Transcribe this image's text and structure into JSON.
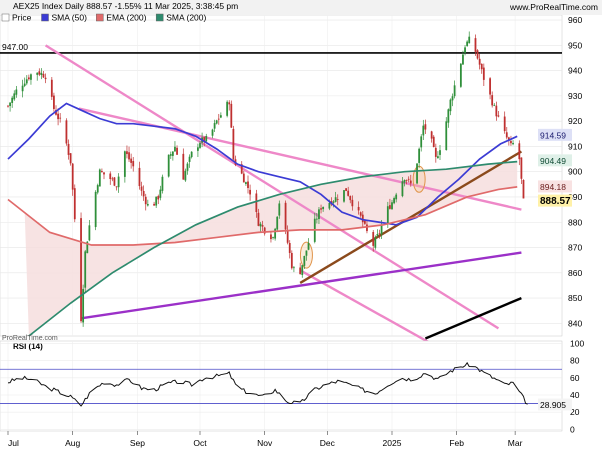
{
  "header": {
    "title": "AEX25 Index Daily 888.57 -1.55% 11 Mar 2025, 3:38:45 pm",
    "brand": "www.ProRealTime.com",
    "watermark": "ProRealTime.com"
  },
  "legend": [
    {
      "label": "Price",
      "color": "#ffffff"
    },
    {
      "label": "SMA (50)",
      "color": "#3b3bd4"
    },
    {
      "label": "EMA (200)",
      "color": "#e06a6a"
    },
    {
      "label": "SMA (200)",
      "color": "#2e8b6e"
    }
  ],
  "rsi_panel": {
    "title": "RSI (14)"
  },
  "chart_data": [
    {
      "type": "candlestick",
      "ylim": [
        835,
        962
      ],
      "y_ticks": [
        840,
        850,
        860,
        870,
        880,
        890,
        900,
        910,
        920,
        930,
        940,
        950,
        960
      ],
      "x_ticks": [
        "Jul",
        "Aug",
        "Sep",
        "Oct",
        "Nov",
        "Dec",
        "2025",
        "Feb",
        "Mar"
      ],
      "x_tick_days": [
        0,
        31,
        62,
        92,
        123,
        153,
        184,
        215,
        243
      ],
      "last_day": 253,
      "price_path": [
        [
          0,
          926
        ],
        [
          4,
          932
        ],
        [
          8,
          936
        ],
        [
          13,
          940
        ],
        [
          18,
          938
        ],
        [
          22,
          925
        ],
        [
          26,
          918
        ],
        [
          30,
          904
        ],
        [
          33,
          870
        ],
        [
          35,
          842
        ],
        [
          37,
          868
        ],
        [
          40,
          884
        ],
        [
          44,
          900
        ],
        [
          48,
          898
        ],
        [
          52,
          895
        ],
        [
          56,
          908
        ],
        [
          60,
          902
        ],
        [
          64,
          892
        ],
        [
          68,
          885
        ],
        [
          72,
          890
        ],
        [
          76,
          904
        ],
        [
          80,
          910
        ],
        [
          84,
          898
        ],
        [
          88,
          907
        ],
        [
          92,
          912
        ],
        [
          96,
          913
        ],
        [
          100,
          920
        ],
        [
          104,
          925
        ],
        [
          106,
          928
        ],
        [
          108,
          905
        ],
        [
          112,
          899
        ],
        [
          116,
          892
        ],
        [
          120,
          880
        ],
        [
          124,
          876
        ],
        [
          127,
          874
        ],
        [
          130,
          888
        ],
        [
          134,
          872
        ],
        [
          136,
          863
        ],
        [
          139,
          858
        ],
        [
          142,
          866
        ],
        [
          146,
          878
        ],
        [
          150,
          886
        ],
        [
          154,
          888
        ],
        [
          158,
          890
        ],
        [
          162,
          893
        ],
        [
          166,
          886
        ],
        [
          169,
          882
        ],
        [
          172,
          876
        ],
        [
          175,
          871
        ],
        [
          178,
          876
        ],
        [
          181,
          884
        ],
        [
          184,
          888
        ],
        [
          187,
          894
        ],
        [
          190,
          898
        ],
        [
          193,
          895
        ],
        [
          196,
          904
        ],
        [
          199,
          918
        ],
        [
          202,
          915
        ],
        [
          205,
          905
        ],
        [
          208,
          912
        ],
        [
          212,
          928
        ],
        [
          216,
          940
        ],
        [
          219,
          950
        ],
        [
          222,
          953
        ],
        [
          225,
          945
        ],
        [
          228,
          937
        ],
        [
          231,
          930
        ],
        [
          234,
          923
        ],
        [
          238,
          915
        ],
        [
          241,
          910
        ],
        [
          243,
          912
        ],
        [
          245,
          905
        ],
        [
          247,
          888
        ]
      ],
      "series": [
        {
          "name": "SMA (50)",
          "color": "#3b3bd4",
          "values": [
            [
              0,
              905
            ],
            [
              10,
              913
            ],
            [
              20,
              922
            ],
            [
              28,
              927
            ],
            [
              36,
              924
            ],
            [
              44,
              921
            ],
            [
              52,
              919
            ],
            [
              60,
              919
            ],
            [
              70,
              918
            ],
            [
              80,
              917
            ],
            [
              90,
              914
            ],
            [
              100,
              909
            ],
            [
              110,
              903
            ],
            [
              120,
              900
            ],
            [
              130,
              898
            ],
            [
              140,
              896
            ],
            [
              150,
              891
            ],
            [
              160,
              884
            ],
            [
              170,
              881
            ],
            [
              178,
              880
            ],
            [
              186,
              879
            ],
            [
              196,
              882
            ],
            [
              206,
              890
            ],
            [
              216,
              897
            ],
            [
              226,
              905
            ],
            [
              236,
              911
            ],
            [
              244,
              914
            ]
          ],
          "last": 914.59
        },
        {
          "name": "EMA (200)",
          "color": "#e06a6a",
          "values": [
            [
              0,
              889
            ],
            [
              20,
              876
            ],
            [
              40,
              871
            ],
            [
              60,
              871
            ],
            [
              80,
              872
            ],
            [
              100,
              874
            ],
            [
              120,
              876
            ],
            [
              140,
              877
            ],
            [
              160,
              877
            ],
            [
              180,
              879
            ],
            [
              200,
              883
            ],
            [
              220,
              890
            ],
            [
              235,
              893
            ],
            [
              244,
              894
            ]
          ],
          "last": 894.18
        },
        {
          "name": "SMA (200)",
          "color": "#2e8b6e",
          "values": [
            [
              10,
              835
            ],
            [
              30,
              848
            ],
            [
              50,
              860
            ],
            [
              70,
              870
            ],
            [
              90,
              879
            ],
            [
              110,
              886
            ],
            [
              130,
              891
            ],
            [
              150,
              895
            ],
            [
              170,
              898
            ],
            [
              190,
              900
            ],
            [
              210,
              901
            ],
            [
              230,
              903
            ],
            [
              244,
              904
            ]
          ],
          "last": 904.49
        }
      ],
      "hline": {
        "label": "947.00",
        "value": 947
      },
      "trendlines": [
        {
          "color": "#ee88c8",
          "from": [
            18,
            950
          ],
          "to": [
            235,
            838
          ]
        },
        {
          "color": "#ee88c8",
          "from": [
            34,
            925
          ],
          "to": [
            246,
            885
          ]
        },
        {
          "color": "#ee88c8",
          "from": [
            140,
            861
          ],
          "to": [
            246,
            812
          ]
        },
        {
          "color": "#8b4a1c",
          "from": [
            140,
            856
          ],
          "to": [
            246,
            908
          ]
        },
        {
          "color": "#9b30c8",
          "from": [
            35,
            842
          ],
          "to": [
            246,
            868
          ]
        },
        {
          "color": "#000000",
          "from": [
            200,
            834
          ],
          "to": [
            246,
            850
          ]
        }
      ],
      "ellipses": [
        {
          "x": 143,
          "y": 867
        },
        {
          "x": 197,
          "y": 897
        }
      ],
      "last_price": 888.57
    },
    {
      "type": "line",
      "name": "RSI (14)",
      "ylim": [
        -2,
        103
      ],
      "y_ticks": [
        0,
        20,
        40,
        60,
        80,
        100
      ],
      "levels": [
        70,
        30
      ],
      "values": [
        [
          0,
          55
        ],
        [
          6,
          60
        ],
        [
          12,
          58
        ],
        [
          18,
          50
        ],
        [
          24,
          44
        ],
        [
          30,
          38
        ],
        [
          35,
          28
        ],
        [
          40,
          45
        ],
        [
          46,
          55
        ],
        [
          52,
          52
        ],
        [
          58,
          58
        ],
        [
          64,
          48
        ],
        [
          70,
          46
        ],
        [
          76,
          53
        ],
        [
          82,
          56
        ],
        [
          88,
          52
        ],
        [
          94,
          60
        ],
        [
          100,
          62
        ],
        [
          106,
          65
        ],
        [
          110,
          48
        ],
        [
          116,
          42
        ],
        [
          122,
          38
        ],
        [
          128,
          46
        ],
        [
          134,
          32
        ],
        [
          140,
          30
        ],
        [
          146,
          45
        ],
        [
          152,
          52
        ],
        [
          158,
          56
        ],
        [
          164,
          52
        ],
        [
          170,
          46
        ],
        [
          176,
          42
        ],
        [
          182,
          52
        ],
        [
          188,
          60
        ],
        [
          194,
          58
        ],
        [
          200,
          66
        ],
        [
          206,
          58
        ],
        [
          212,
          68
        ],
        [
          218,
          74
        ],
        [
          222,
          76
        ],
        [
          228,
          66
        ],
        [
          234,
          58
        ],
        [
          238,
          52
        ],
        [
          242,
          54
        ],
        [
          246,
          40
        ],
        [
          249,
          28.905
        ]
      ],
      "last": 28.905
    }
  ]
}
